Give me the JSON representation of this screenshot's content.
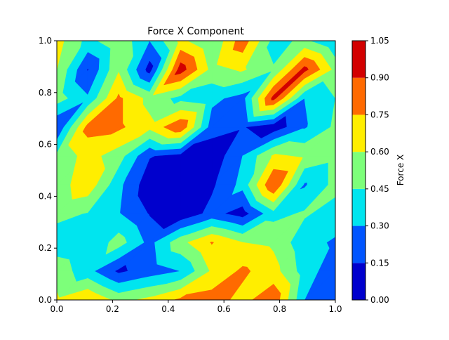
{
  "chart_data": {
    "type": "heatmap",
    "subtype": "filled-contour",
    "title": "Force X Component",
    "xlabel": "",
    "ylabel": "",
    "xlim": [
      0,
      1
    ],
    "ylim": [
      0,
      1
    ],
    "xticks": [
      "0.0",
      "0.2",
      "0.4",
      "0.6",
      "0.8",
      "1.0"
    ],
    "yticks": [
      "0.0",
      "0.2",
      "0.4",
      "0.6",
      "0.8",
      "1.0"
    ],
    "grid": false,
    "colormap": "jet",
    "colorbar": {
      "label": "Force X",
      "levels": [
        "0.00",
        "0.15",
        "0.30",
        "0.45",
        "0.60",
        "0.75",
        "0.90",
        "1.05"
      ],
      "colors": [
        "#0000cd",
        "#0055ff",
        "#00e5ef",
        "#7dff7a",
        "#ffee00",
        "#ff6a00",
        "#d20000"
      ]
    },
    "grid_x": [
      0,
      0.111,
      0.222,
      0.333,
      0.444,
      0.556,
      0.667,
      0.778,
      0.889,
      1.0
    ],
    "grid_y": [
      0,
      0.111,
      0.222,
      0.333,
      0.444,
      0.556,
      0.667,
      0.778,
      0.889,
      1.0
    ],
    "z": [
      [
        0.62,
        0.75,
        0.55,
        0.64,
        0.78,
        0.82,
        0.7,
        0.86,
        0.3,
        0.16
      ],
      [
        0.55,
        0.35,
        0.12,
        0.22,
        0.3,
        0.62,
        0.78,
        0.66,
        0.38,
        0.2
      ],
      [
        0.35,
        0.3,
        0.52,
        0.25,
        0.55,
        0.76,
        0.6,
        0.57,
        0.35,
        0.28
      ],
      [
        0.5,
        0.44,
        0.31,
        0.14,
        0.03,
        0.2,
        0.08,
        0.4,
        0.47,
        0.38
      ],
      [
        0.52,
        0.7,
        0.34,
        0.05,
        0.06,
        0.12,
        0.35,
        0.9,
        0.28,
        0.5
      ],
      [
        0.48,
        0.66,
        0.52,
        0.16,
        0.1,
        0.04,
        0.3,
        0.62,
        0.58,
        0.5
      ],
      [
        0.15,
        0.8,
        0.78,
        0.64,
        0.88,
        0.22,
        0.16,
        0.05,
        0.28,
        0.48
      ],
      [
        0.52,
        0.32,
        0.78,
        0.55,
        0.4,
        0.34,
        0.24,
        0.95,
        0.3,
        0.45
      ],
      [
        0.6,
        0.14,
        0.58,
        0.08,
        0.98,
        0.55,
        0.62,
        0.46,
        0.95,
        0.55
      ],
      [
        0.66,
        0.4,
        0.56,
        0.3,
        0.64,
        0.45,
        0.84,
        0.4,
        0.48,
        0.3
      ]
    ]
  }
}
